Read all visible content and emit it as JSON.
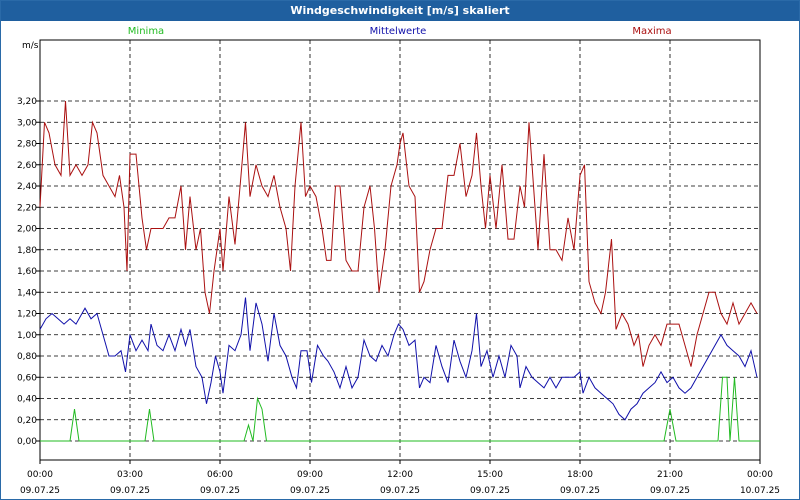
{
  "window": {
    "title": "Windgeschwindigkeit [m/s] skaliert"
  },
  "chart_data": {
    "type": "line",
    "title": "Windgeschwindigkeit [m/s] skaliert",
    "ylabel": "m/s",
    "ylim": [
      0,
      3.3
    ],
    "yticks": [
      "0,00",
      "0,20",
      "0,40",
      "0,60",
      "0,80",
      "1,00",
      "1,20",
      "1,40",
      "1,60",
      "1,80",
      "2,00",
      "2,20",
      "2,40",
      "2,60",
      "2,80",
      "3,00",
      "3,20"
    ],
    "xlim_hours": [
      0,
      24
    ],
    "xticks": [
      {
        "time": "00:00",
        "date": "09.07.25"
      },
      {
        "time": "03:00",
        "date": "09.07.25"
      },
      {
        "time": "06:00",
        "date": "09.07.25"
      },
      {
        "time": "09:00",
        "date": "09.07.25"
      },
      {
        "time": "12:00",
        "date": "09.07.25"
      },
      {
        "time": "15:00",
        "date": "09.07.25"
      },
      {
        "time": "18:00",
        "date": "09.07.25"
      },
      {
        "time": "21:00",
        "date": "09.07.25"
      },
      {
        "time": "00:00",
        "date": "10.07.25"
      }
    ],
    "grid": true,
    "legend_position": "top",
    "series": [
      {
        "name": "Minima",
        "color": "#22bb22",
        "points": [
          [
            0,
            0
          ],
          [
            1.0,
            0
          ],
          [
            1.15,
            0.3
          ],
          [
            1.3,
            0
          ],
          [
            3.5,
            0
          ],
          [
            3.65,
            0.3
          ],
          [
            3.8,
            0
          ],
          [
            6.8,
            0
          ],
          [
            6.95,
            0.15
          ],
          [
            7.1,
            0
          ],
          [
            7.25,
            0.4
          ],
          [
            7.4,
            0.3
          ],
          [
            7.55,
            0
          ],
          [
            20.8,
            0
          ],
          [
            21.0,
            0.3
          ],
          [
            21.2,
            0
          ],
          [
            22.6,
            0
          ],
          [
            22.75,
            0.6
          ],
          [
            22.9,
            0.6
          ],
          [
            23.0,
            0
          ],
          [
            23.15,
            0.6
          ],
          [
            23.3,
            0
          ],
          [
            24,
            0
          ]
        ]
      },
      {
        "name": "Mittelwerte",
        "color": "#1010aa",
        "points": [
          [
            0,
            1.05
          ],
          [
            0.2,
            1.15
          ],
          [
            0.4,
            1.2
          ],
          [
            0.6,
            1.15
          ],
          [
            0.8,
            1.1
          ],
          [
            1.0,
            1.15
          ],
          [
            1.2,
            1.1
          ],
          [
            1.4,
            1.2
          ],
          [
            1.5,
            1.25
          ],
          [
            1.7,
            1.15
          ],
          [
            1.9,
            1.2
          ],
          [
            2.1,
            1.0
          ],
          [
            2.3,
            0.8
          ],
          [
            2.5,
            0.8
          ],
          [
            2.7,
            0.85
          ],
          [
            2.85,
            0.65
          ],
          [
            3.0,
            1.0
          ],
          [
            3.2,
            0.85
          ],
          [
            3.4,
            0.95
          ],
          [
            3.6,
            0.85
          ],
          [
            3.7,
            1.1
          ],
          [
            3.9,
            0.9
          ],
          [
            4.1,
            0.85
          ],
          [
            4.3,
            1.0
          ],
          [
            4.5,
            0.85
          ],
          [
            4.7,
            1.05
          ],
          [
            4.85,
            0.9
          ],
          [
            5.0,
            1.05
          ],
          [
            5.2,
            0.7
          ],
          [
            5.4,
            0.6
          ],
          [
            5.55,
            0.35
          ],
          [
            5.7,
            0.55
          ],
          [
            5.85,
            0.8
          ],
          [
            6.0,
            0.65
          ],
          [
            6.1,
            0.45
          ],
          [
            6.3,
            0.9
          ],
          [
            6.5,
            0.85
          ],
          [
            6.7,
            1.0
          ],
          [
            6.85,
            1.35
          ],
          [
            7.0,
            0.85
          ],
          [
            7.2,
            1.3
          ],
          [
            7.4,
            1.1
          ],
          [
            7.6,
            0.75
          ],
          [
            7.8,
            1.2
          ],
          [
            8.0,
            0.9
          ],
          [
            8.2,
            0.8
          ],
          [
            8.4,
            0.6
          ],
          [
            8.55,
            0.5
          ],
          [
            8.7,
            0.85
          ],
          [
            8.9,
            0.85
          ],
          [
            9.05,
            0.55
          ],
          [
            9.25,
            0.9
          ],
          [
            9.45,
            0.8
          ],
          [
            9.6,
            0.75
          ],
          [
            9.8,
            0.65
          ],
          [
            10.0,
            0.5
          ],
          [
            10.2,
            0.7
          ],
          [
            10.4,
            0.5
          ],
          [
            10.6,
            0.6
          ],
          [
            10.8,
            0.95
          ],
          [
            11.0,
            0.8
          ],
          [
            11.2,
            0.75
          ],
          [
            11.4,
            0.9
          ],
          [
            11.6,
            0.8
          ],
          [
            11.8,
            1.0
          ],
          [
            11.95,
            1.1
          ],
          [
            12.1,
            1.05
          ],
          [
            12.3,
            0.9
          ],
          [
            12.5,
            0.95
          ],
          [
            12.65,
            0.5
          ],
          [
            12.8,
            0.6
          ],
          [
            13.0,
            0.55
          ],
          [
            13.2,
            0.9
          ],
          [
            13.4,
            0.7
          ],
          [
            13.6,
            0.55
          ],
          [
            13.8,
            0.95
          ],
          [
            14.0,
            0.75
          ],
          [
            14.2,
            0.6
          ],
          [
            14.4,
            0.85
          ],
          [
            14.55,
            1.2
          ],
          [
            14.7,
            0.7
          ],
          [
            14.9,
            0.85
          ],
          [
            15.1,
            0.6
          ],
          [
            15.3,
            0.8
          ],
          [
            15.5,
            0.6
          ],
          [
            15.7,
            0.9
          ],
          [
            15.9,
            0.8
          ],
          [
            16.0,
            0.5
          ],
          [
            16.2,
            0.7
          ],
          [
            16.4,
            0.6
          ],
          [
            16.6,
            0.55
          ],
          [
            16.8,
            0.5
          ],
          [
            17.0,
            0.6
          ],
          [
            17.2,
            0.5
          ],
          [
            17.4,
            0.6
          ],
          [
            17.6,
            0.6
          ],
          [
            17.8,
            0.6
          ],
          [
            18.0,
            0.65
          ],
          [
            18.1,
            0.45
          ],
          [
            18.3,
            0.6
          ],
          [
            18.5,
            0.5
          ],
          [
            18.7,
            0.45
          ],
          [
            18.9,
            0.4
          ],
          [
            19.1,
            0.35
          ],
          [
            19.3,
            0.25
          ],
          [
            19.5,
            0.2
          ],
          [
            19.7,
            0.3
          ],
          [
            19.9,
            0.35
          ],
          [
            20.1,
            0.45
          ],
          [
            20.3,
            0.5
          ],
          [
            20.5,
            0.55
          ],
          [
            20.7,
            0.65
          ],
          [
            20.9,
            0.55
          ],
          [
            21.1,
            0.6
          ],
          [
            21.3,
            0.5
          ],
          [
            21.5,
            0.45
          ],
          [
            21.7,
            0.5
          ],
          [
            21.9,
            0.6
          ],
          [
            22.1,
            0.7
          ],
          [
            22.3,
            0.8
          ],
          [
            22.5,
            0.9
          ],
          [
            22.7,
            1.0
          ],
          [
            22.9,
            0.9
          ],
          [
            23.1,
            0.85
          ],
          [
            23.3,
            0.8
          ],
          [
            23.5,
            0.7
          ],
          [
            23.7,
            0.85
          ],
          [
            23.9,
            0.6
          ]
        ]
      },
      {
        "name": "Maxima",
        "color": "#aa1010",
        "points": [
          [
            0,
            2.2
          ],
          [
            0.15,
            3.0
          ],
          [
            0.3,
            2.9
          ],
          [
            0.5,
            2.6
          ],
          [
            0.7,
            2.5
          ],
          [
            0.85,
            3.2
          ],
          [
            1.0,
            2.5
          ],
          [
            1.2,
            2.6
          ],
          [
            1.4,
            2.5
          ],
          [
            1.6,
            2.6
          ],
          [
            1.75,
            3.0
          ],
          [
            1.9,
            2.9
          ],
          [
            2.1,
            2.5
          ],
          [
            2.3,
            2.4
          ],
          [
            2.5,
            2.3
          ],
          [
            2.65,
            2.5
          ],
          [
            2.8,
            2.2
          ],
          [
            2.9,
            1.6
          ],
          [
            3.0,
            2.7
          ],
          [
            3.2,
            2.7
          ],
          [
            3.4,
            2.1
          ],
          [
            3.55,
            1.8
          ],
          [
            3.7,
            2.0
          ],
          [
            3.9,
            2.0
          ],
          [
            4.1,
            2.0
          ],
          [
            4.3,
            2.1
          ],
          [
            4.5,
            2.1
          ],
          [
            4.7,
            2.4
          ],
          [
            4.85,
            1.8
          ],
          [
            5.0,
            2.3
          ],
          [
            5.2,
            1.8
          ],
          [
            5.35,
            2.0
          ],
          [
            5.5,
            1.4
          ],
          [
            5.65,
            1.2
          ],
          [
            5.8,
            1.6
          ],
          [
            6.0,
            2.0
          ],
          [
            6.1,
            1.6
          ],
          [
            6.3,
            2.3
          ],
          [
            6.5,
            1.85
          ],
          [
            6.7,
            2.5
          ],
          [
            6.85,
            3.0
          ],
          [
            7.0,
            2.3
          ],
          [
            7.2,
            2.6
          ],
          [
            7.4,
            2.4
          ],
          [
            7.6,
            2.3
          ],
          [
            7.8,
            2.5
          ],
          [
            8.0,
            2.2
          ],
          [
            8.2,
            2.0
          ],
          [
            8.35,
            1.6
          ],
          [
            8.5,
            2.4
          ],
          [
            8.7,
            3.0
          ],
          [
            8.85,
            2.3
          ],
          [
            9.0,
            2.4
          ],
          [
            9.2,
            2.3
          ],
          [
            9.4,
            2.0
          ],
          [
            9.55,
            1.7
          ],
          [
            9.7,
            1.7
          ],
          [
            9.85,
            2.4
          ],
          [
            10.0,
            2.4
          ],
          [
            10.2,
            1.7
          ],
          [
            10.4,
            1.6
          ],
          [
            10.6,
            1.6
          ],
          [
            10.8,
            2.2
          ],
          [
            11.0,
            2.4
          ],
          [
            11.15,
            2.0
          ],
          [
            11.3,
            1.4
          ],
          [
            11.5,
            1.8
          ],
          [
            11.7,
            2.4
          ],
          [
            11.9,
            2.6
          ],
          [
            12.0,
            2.8
          ],
          [
            12.1,
            2.9
          ],
          [
            12.3,
            2.4
          ],
          [
            12.5,
            2.3
          ],
          [
            12.65,
            1.4
          ],
          [
            12.8,
            1.5
          ],
          [
            13.0,
            1.8
          ],
          [
            13.2,
            2.0
          ],
          [
            13.4,
            2.0
          ],
          [
            13.6,
            2.5
          ],
          [
            13.8,
            2.5
          ],
          [
            14.0,
            2.8
          ],
          [
            14.2,
            2.3
          ],
          [
            14.4,
            2.5
          ],
          [
            14.55,
            2.9
          ],
          [
            14.7,
            2.4
          ],
          [
            14.85,
            2.0
          ],
          [
            15.0,
            2.5
          ],
          [
            15.2,
            2.0
          ],
          [
            15.4,
            2.6
          ],
          [
            15.6,
            1.9
          ],
          [
            15.8,
            1.9
          ],
          [
            16.0,
            2.4
          ],
          [
            16.15,
            2.2
          ],
          [
            16.3,
            3.0
          ],
          [
            16.5,
            2.2
          ],
          [
            16.6,
            1.8
          ],
          [
            16.8,
            2.7
          ],
          [
            17.0,
            1.8
          ],
          [
            17.2,
            1.8
          ],
          [
            17.4,
            1.7
          ],
          [
            17.6,
            2.1
          ],
          [
            17.8,
            1.8
          ],
          [
            18.0,
            2.5
          ],
          [
            18.15,
            2.6
          ],
          [
            18.3,
            1.5
          ],
          [
            18.5,
            1.3
          ],
          [
            18.7,
            1.2
          ],
          [
            18.85,
            1.4
          ],
          [
            19.05,
            1.9
          ],
          [
            19.2,
            1.05
          ],
          [
            19.4,
            1.2
          ],
          [
            19.6,
            1.1
          ],
          [
            19.8,
            0.9
          ],
          [
            19.95,
            1.0
          ],
          [
            20.1,
            0.7
          ],
          [
            20.3,
            0.9
          ],
          [
            20.5,
            1.0
          ],
          [
            20.7,
            0.9
          ],
          [
            20.9,
            1.1
          ],
          [
            21.1,
            1.1
          ],
          [
            21.3,
            1.1
          ],
          [
            21.5,
            0.9
          ],
          [
            21.7,
            0.7
          ],
          [
            21.9,
            1.0
          ],
          [
            22.1,
            1.2
          ],
          [
            22.3,
            1.4
          ],
          [
            22.5,
            1.4
          ],
          [
            22.7,
            1.2
          ],
          [
            22.9,
            1.1
          ],
          [
            23.1,
            1.3
          ],
          [
            23.3,
            1.1
          ],
          [
            23.5,
            1.2
          ],
          [
            23.7,
            1.3
          ],
          [
            23.9,
            1.2
          ]
        ]
      }
    ]
  }
}
